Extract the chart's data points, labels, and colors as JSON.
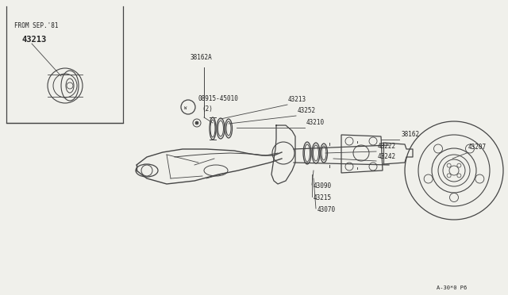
{
  "bg_color": "#f0f0eb",
  "line_color": "#444444",
  "text_color": "#222222",
  "page_ref": "A-30*0 P6",
  "inset_label": "FROM SEP.'81",
  "inset_part": "43213",
  "fig_w": 6.4,
  "fig_h": 3.72,
  "dpi": 100
}
